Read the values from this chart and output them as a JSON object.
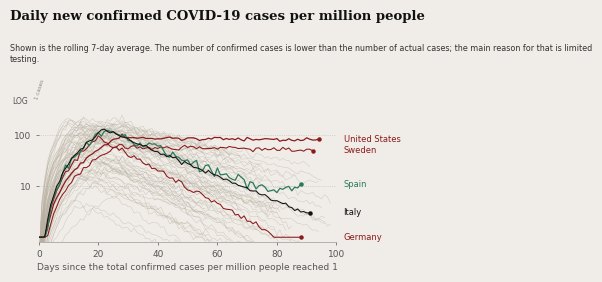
{
  "title": "Daily new confirmed COVID-19 cases per million people",
  "subtitle": "Shown is the rolling 7-day average. The number of confirmed cases is lower than the number of actual cases; the main reason for that is limited\ntesting.",
  "log_label": "LOG",
  "xlabel": "Days since the total confirmed cases per million people reached 1",
  "background_color": "#f0ede8",
  "grid_color": "#c8c8c8",
  "yticks": [
    10,
    100
  ],
  "xticks": [
    0,
    20,
    40,
    60,
    80,
    100
  ],
  "ylim_log": [
    0.8,
    350
  ],
  "xlim": [
    0,
    100
  ],
  "title_fontsize": 9.5,
  "subtitle_fontsize": 5.8,
  "axis_fontsize": 6.5,
  "label_fontsize": 6.0,
  "us_color": "#8b1a1a",
  "sweden_color": "#8b1a1a",
  "spain_color": "#2a7a5a",
  "italy_color": "#111111",
  "germany_color": "#8b1a1a",
  "bg_color": "#b8afa0",
  "dotted_grid_color": "#bbbbbb"
}
